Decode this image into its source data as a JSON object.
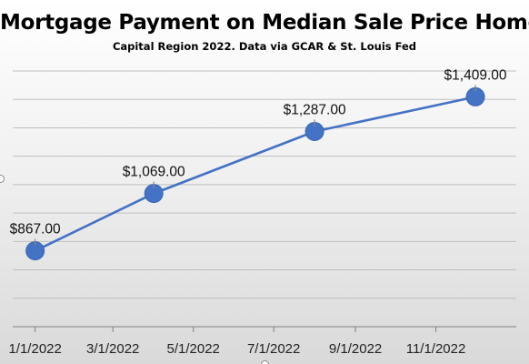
{
  "chart_data": {
    "type": "line",
    "title": "Mortgage Payment on Median Sale Price Homes",
    "subtitle": "Capital Region 2022. Data via GCAR & St. Louis Fed",
    "xlabel": "",
    "ylabel": "",
    "x_ticks": [
      "1/1/2022",
      "3/1/2022",
      "5/1/2022",
      "7/1/2022",
      "9/1/2022",
      "11/1/2022"
    ],
    "x_tick_dates": [
      "2022-01-01",
      "2022-03-01",
      "2022-05-01",
      "2022-07-01",
      "2022-09-01",
      "2022-11-01"
    ],
    "xlim": [
      "2021-12-15",
      "2023-01-01"
    ],
    "ylim": [
      600,
      1500
    ],
    "y_gridlines": [
      700,
      800,
      900,
      1000,
      1100,
      1200,
      1300,
      1400,
      1500
    ],
    "grid": true,
    "legend": "none",
    "points": [
      {
        "x": "2022-01-01",
        "y": 867,
        "label": "$867.00"
      },
      {
        "x": "2022-04-01",
        "y": 1069,
        "label": "$1,069.00"
      },
      {
        "x": "2022-08-01",
        "y": 1287,
        "label": "$1,287.00"
      },
      {
        "x": "2022-12-01",
        "y": 1409,
        "label": "$1,409.00"
      }
    ],
    "colors": {
      "line": "#4472c4",
      "marker": "#4472c4",
      "gridline": "#bfbfbf",
      "axis": "#808080"
    }
  }
}
